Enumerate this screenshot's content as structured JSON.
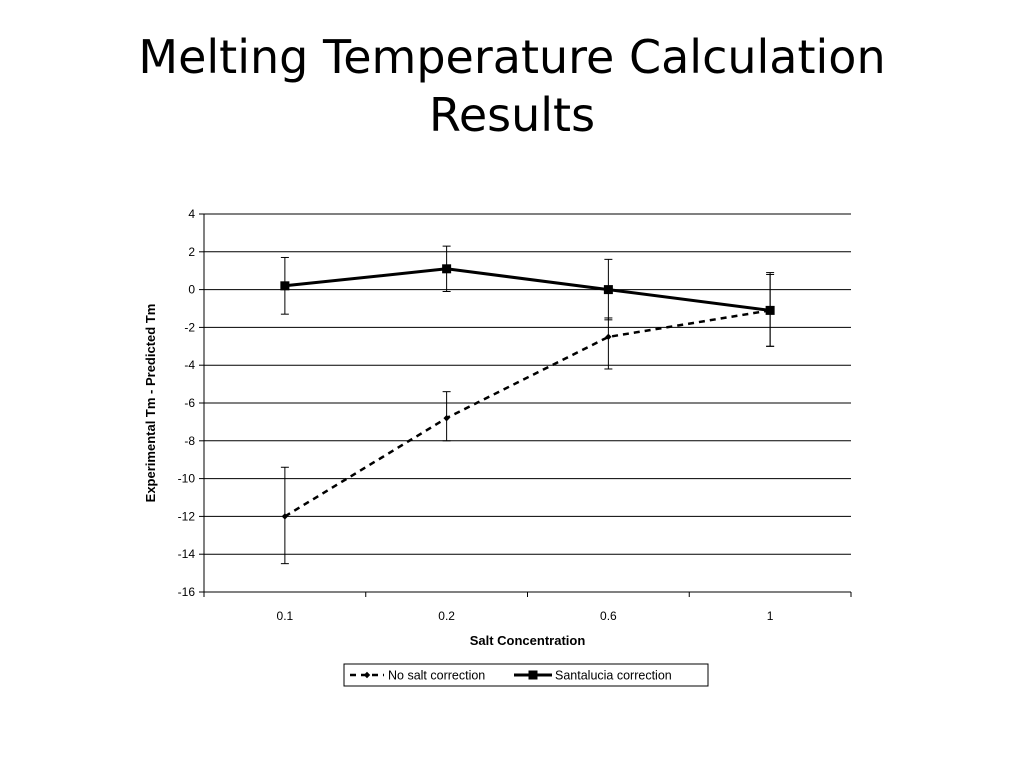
{
  "slide": {
    "title_line1": "Melting Temperature Calculation",
    "title_line2": "Results"
  },
  "chart_data": {
    "type": "line",
    "categories": [
      "0.1",
      "0.2",
      "0.6",
      "1"
    ],
    "xlabel": "Salt Concentration",
    "ylabel": "Experimental Tm - Predicted Tm",
    "ylim": [
      -16,
      4
    ],
    "yticks": [
      4,
      2,
      0,
      -2,
      -4,
      -6,
      -8,
      -10,
      -12,
      -14,
      -16
    ],
    "grid": "horizontal",
    "legend_position": "bottom",
    "series": [
      {
        "name": "No salt correction",
        "style": "dashed",
        "marker": "diamond",
        "values": [
          -12.0,
          -6.8,
          -2.5,
          -1.1
        ],
        "error_low": [
          -14.5,
          -8.0,
          -4.2,
          -3.0
        ],
        "error_high": [
          -9.4,
          -5.4,
          -1.5,
          0.9
        ]
      },
      {
        "name": "Santalucia correction",
        "style": "solid",
        "marker": "square",
        "values": [
          0.2,
          1.1,
          0.0,
          -1.1
        ],
        "error_low": [
          -1.3,
          -0.1,
          -1.6,
          -3.0
        ],
        "error_high": [
          1.7,
          2.3,
          1.6,
          0.8
        ]
      }
    ],
    "line_color": "#000000"
  }
}
